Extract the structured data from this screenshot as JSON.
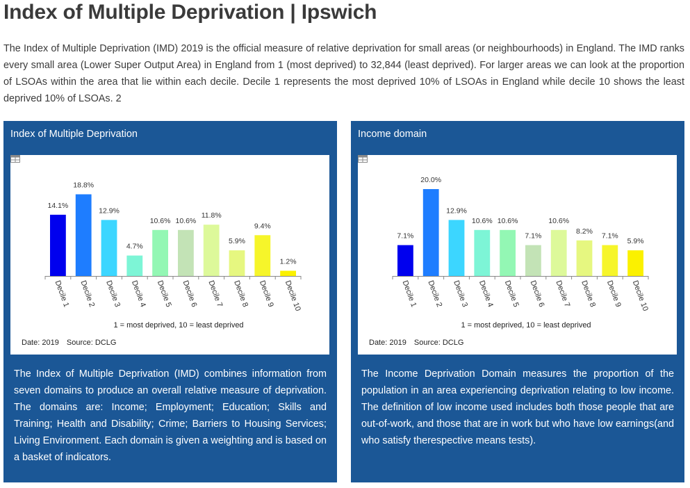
{
  "page": {
    "title": "Index of Multiple Deprivation | Ipswich",
    "intro": "The Index of Multiple Deprivation (IMD) 2019 is the official measure of relative deprivation for small areas (or neighbourhoods) in England.  The IMD ranks every small area (Lower Super Output Area) in England from 1 (most deprived) to 32,844 (least deprived). For larger areas we can look at the proportion of LSOAs within the area that lie within each decile.  Decile 1 represents the most deprived 10% of LSOAs in England while decile 10 shows the least deprived 10% of LSOAs. 2"
  },
  "panels": [
    {
      "title": "Index of Multiple Deprivation",
      "date_text": "Date: 2019",
      "source_text": "Source: DCLG",
      "description": "The Index of Multiple Deprivation (IMD) combines information from seven domains to produce an overall relative measure of deprivation. The domains are: Income; Employment; Education; Skills and Training; Health and Disability; Crime; Barriers to Housing Services; Living Environment. Each domain is given a weighting and is based on a basket of indicators."
    },
    {
      "title": "Income domain",
      "date_text": "Date: 2019",
      "source_text": "Source: DCLG",
      "description": "The Income Deprivation Domain measures the proportion of the population in an area experiencing deprivation relating to low income. The definition of low income used includes both those people that are out-of-work, and those that are in work but who have low earnings(and who satisfy therespective means tests)."
    }
  ],
  "colors": {
    "panel_bg": "#1b5796",
    "bar_colors": [
      "#0000ee",
      "#1e7dff",
      "#3cd6ff",
      "#7df5d6",
      "#93f7b4",
      "#c3e3b6",
      "#ddf99a",
      "#e6f780",
      "#f6f52a",
      "#fbf100"
    ]
  },
  "chart_data": [
    {
      "type": "bar",
      "title": "Index of Multiple Deprivation",
      "categories": [
        "Decile 1",
        "Decile 2",
        "Decile 3",
        "Decile 4",
        "Decile 5",
        "Decile 6",
        "Decile 7",
        "Decile 8",
        "Decile 9",
        "Decile 10"
      ],
      "values": [
        14.1,
        18.8,
        12.9,
        4.7,
        10.6,
        10.6,
        11.8,
        5.9,
        9.4,
        1.2
      ],
      "labels": [
        "14.1%",
        "18.8%",
        "12.9%",
        "4.7%",
        "10.6%",
        "10.6%",
        "11.8%",
        "5.9%",
        "9.4%",
        "1.2%"
      ],
      "xlabel": "1 = most deprived, 10 = least deprived",
      "ylabel": "",
      "ylim": [
        0,
        20
      ]
    },
    {
      "type": "bar",
      "title": "Income domain",
      "categories": [
        "Decile 1",
        "Decile 2",
        "Decile 3",
        "Decile 4",
        "Decile 5",
        "Decile 6",
        "Decile 7",
        "Decile 8",
        "Decile 9",
        "Decile 10"
      ],
      "values": [
        7.1,
        20.0,
        12.9,
        10.6,
        10.6,
        7.1,
        10.6,
        8.2,
        7.1,
        5.9
      ],
      "labels": [
        "7.1%",
        "20.0%",
        "12.9%",
        "10.6%",
        "10.6%",
        "7.1%",
        "10.6%",
        "8.2%",
        "7.1%",
        "5.9%"
      ],
      "xlabel": "1 = most deprived, 10 = least deprived",
      "ylabel": "",
      "ylim": [
        0,
        20
      ]
    }
  ]
}
